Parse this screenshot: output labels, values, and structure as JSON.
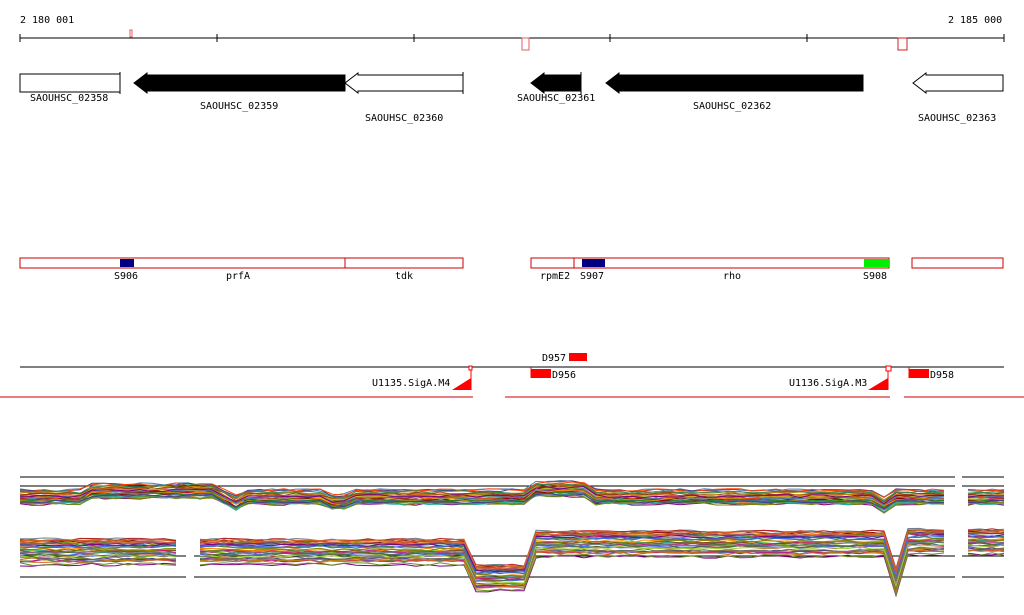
{
  "ruler": {
    "start_label": "2 180 001",
    "end_label": "2 185 000"
  },
  "genes": [
    {
      "label": "SAOUHSC_02358",
      "strand": "+",
      "fill": "#ffffff"
    },
    {
      "label": "SAOUHSC_02359",
      "strand": "-",
      "fill": "#000000"
    },
    {
      "label": "SAOUHSC_02360",
      "strand": "-",
      "fill": "#ffffff"
    },
    {
      "label": "SAOUHSC_02361",
      "strand": "-",
      "fill": "#000000"
    },
    {
      "label": "SAOUHSC_02362",
      "strand": "-",
      "fill": "#000000"
    },
    {
      "label": "SAOUHSC_02363",
      "strand": "-",
      "fill": "#ffffff"
    }
  ],
  "operon_blocks": [
    {
      "name": "block-1"
    },
    {
      "name": "block-2"
    },
    {
      "name": "block-3"
    }
  ],
  "operon_labels": {
    "prfA": "prfA",
    "tdk": "tdk",
    "rpmE2": "rpmE2",
    "rho": "rho"
  },
  "segments": [
    {
      "label": "S906",
      "color": "#000080"
    },
    {
      "label": "S907",
      "color": "#000080"
    },
    {
      "label": "S908",
      "color": "#00ee00"
    }
  ],
  "features": {
    "D957": "D957",
    "D956": "D956",
    "D958": "D958",
    "U1135": "U1135.SigA.M4",
    "U1136": "U1136.SigA.M3"
  },
  "colors": {
    "outline_red": "#cc0000",
    "feature_red": "#ff0000",
    "axis": "#000000"
  }
}
